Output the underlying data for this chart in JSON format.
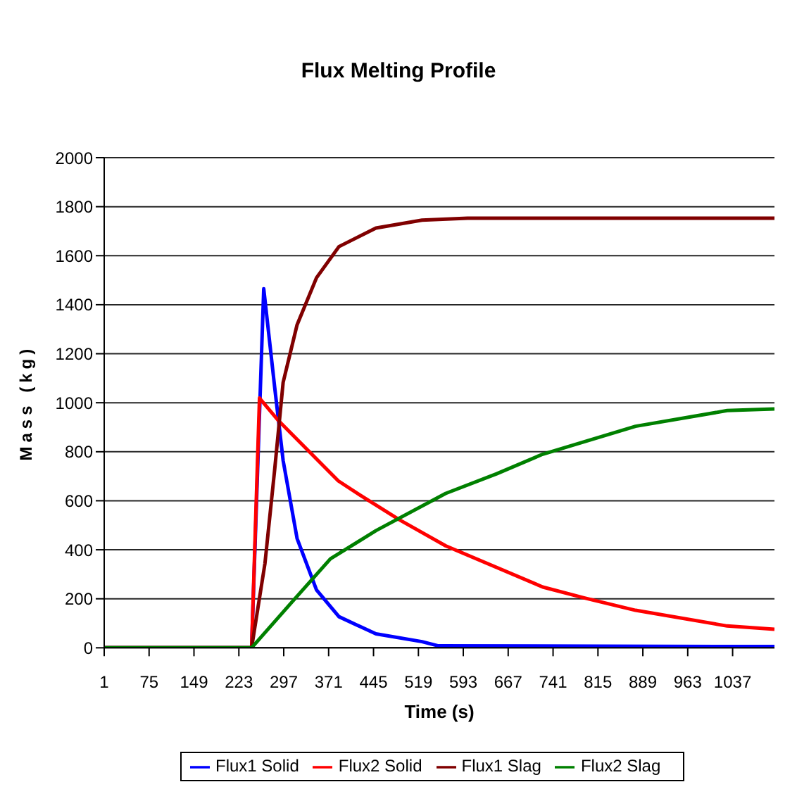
{
  "chart_data": {
    "type": "line",
    "title": "Flux Melting Profile",
    "xlabel": "Time (s)",
    "ylabel": "Mass (kg)",
    "xlim": [
      1,
      1106
    ],
    "xticks": [
      1,
      75,
      149,
      223,
      297,
      371,
      445,
      519,
      593,
      667,
      741,
      815,
      889,
      963,
      1037
    ],
    "ylim": [
      0,
      2000
    ],
    "yticks": [
      0,
      200,
      400,
      600,
      800,
      1000,
      1200,
      1400,
      1600,
      1800,
      2000
    ],
    "grid": "y",
    "legend": "bottom",
    "marker": "none",
    "line_style": "solid",
    "series": [
      {
        "name": "Flux1 Solid",
        "color": "#0000ff",
        "x": [
          1,
          244,
          264,
          282,
          296,
          319,
          351,
          388,
          449,
          525,
          552,
          1106
        ],
        "values": [
          0,
          0,
          1465,
          1064,
          764,
          446,
          236,
          127,
          57,
          25,
          8,
          5
        ]
      },
      {
        "name": "Flux2 Solid",
        "color": "#ff0000",
        "x": [
          1,
          244,
          257,
          289,
          387,
          426,
          488,
          564,
          724,
          792,
          877,
          1028,
          1106
        ],
        "values": [
          0,
          0,
          1019,
          925,
          681,
          618,
          522,
          416,
          248,
          204,
          153,
          89,
          76
        ]
      },
      {
        "name": "Flux1 Slag",
        "color": "#800000",
        "x": [
          1,
          244,
          266,
          282,
          296,
          319,
          351,
          388,
          449,
          525,
          600,
          1106
        ],
        "values": [
          0,
          0,
          344,
          726,
          1083,
          1318,
          1510,
          1637,
          1713,
          1745,
          1753,
          1753
        ]
      },
      {
        "name": "Flux2 Slag",
        "color": "#008000",
        "x": [
          1,
          244,
          312,
          374,
          449,
          564,
          648,
          724,
          877,
          1028,
          1106
        ],
        "values": [
          0,
          0,
          191,
          363,
          478,
          630,
          710,
          790,
          904,
          968,
          975
        ]
      }
    ]
  }
}
